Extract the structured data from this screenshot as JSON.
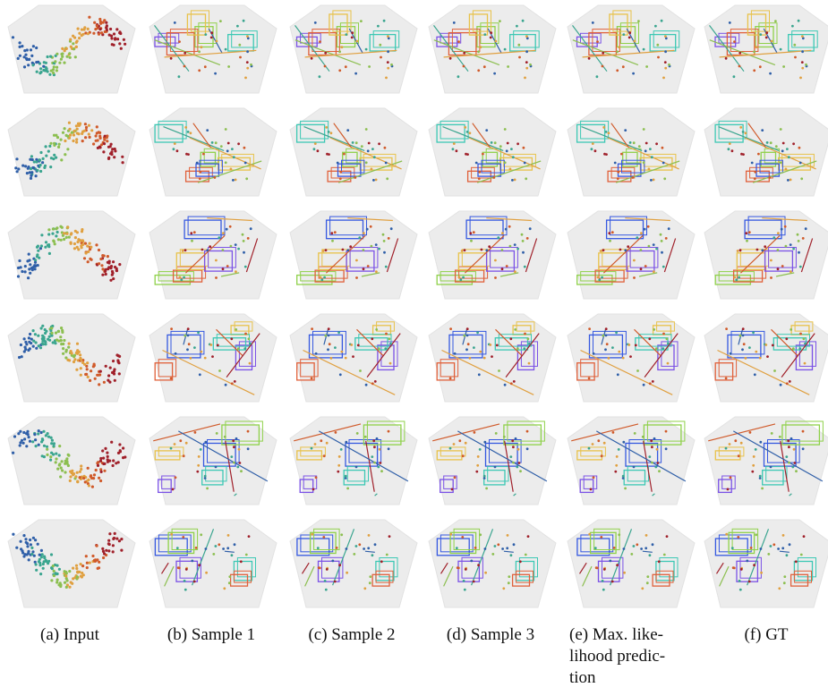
{
  "figure": {
    "captions": [
      {
        "lines": [
          "(a) Input"
        ]
      },
      {
        "lines": [
          "(b) Sample 1"
        ]
      },
      {
        "lines": [
          "(c) Sample 2"
        ]
      },
      {
        "lines": [
          "(d) Sample 3"
        ]
      },
      {
        "lines": [
          "(e) Max. like-",
          "lihood predic-",
          "tion"
        ]
      },
      {
        "lines": [
          "(f) GT"
        ]
      }
    ]
  }
}
